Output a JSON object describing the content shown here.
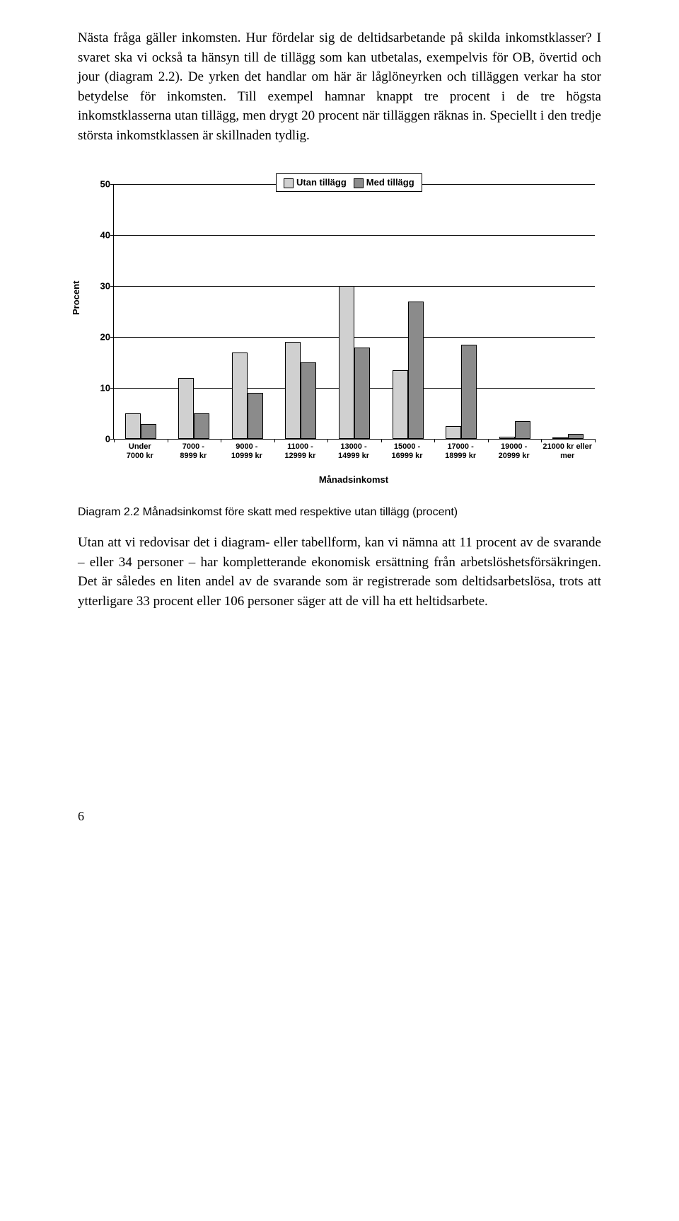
{
  "para1": "Nästa fråga gäller inkomsten. Hur fördelar sig de deltidsarbetande på skilda inkomstklasser? I svaret ska vi också ta hänsyn till de tillägg som kan utbetalas, exempelvis för OB, övertid och jour (diagram 2.2). De yrken det handlar om här är låglöneyrken och tilläggen verkar ha stor betydelse för inkomsten. Till exempel hamnar knappt tre procent i de tre högsta inkomstklasserna utan tillägg, men drygt 20 procent när tilläggen räknas in. Speciellt i den tredje största inkomstklassen är skillnaden tydlig.",
  "para2": "Utan att vi redovisar det i diagram- eller tabellform, kan vi nämna att 11 procent av de svarande – eller 34 personer – har kompletterande ekonomisk ersättning från arbetslöshetsförsäkringen. Det är således en liten andel av de svarande som är registrerade som deltidsarbetslösa, trots att ytterligare 33 procent eller 106 personer säger att de vill ha ett heltidsarbete.",
  "chart": {
    "type": "bar",
    "legend": {
      "series1": "Utan tillägg",
      "series2": "Med tillägg"
    },
    "colors": {
      "series1": "#d0d0d0",
      "series2": "#8b8b8b",
      "grid": "#000000",
      "bg": "#ffffff"
    },
    "ylabel": "Procent",
    "xlabel": "Månadsinkomst",
    "ylim_max": 50,
    "yticks": [
      0,
      10,
      20,
      30,
      40,
      50
    ],
    "categories": [
      "Under 7000 kr",
      "7000 - 8999 kr",
      "9000 - 10999 kr",
      "11000 - 12999 kr",
      "13000 - 14999 kr",
      "15000 - 16999 kr",
      "17000 - 18999 kr",
      "19000 - 20999 kr",
      "21000 kr eller mer"
    ],
    "series1_values": [
      5,
      12,
      17,
      19,
      30,
      13.5,
      2.5,
      0.5,
      0
    ],
    "series2_values": [
      3,
      5,
      9,
      15,
      18,
      27,
      18.5,
      3.5,
      1
    ]
  },
  "caption": "Diagram 2.2 Månadsinkomst före skatt med respektive utan tillägg (procent)",
  "pageNumber": "6"
}
